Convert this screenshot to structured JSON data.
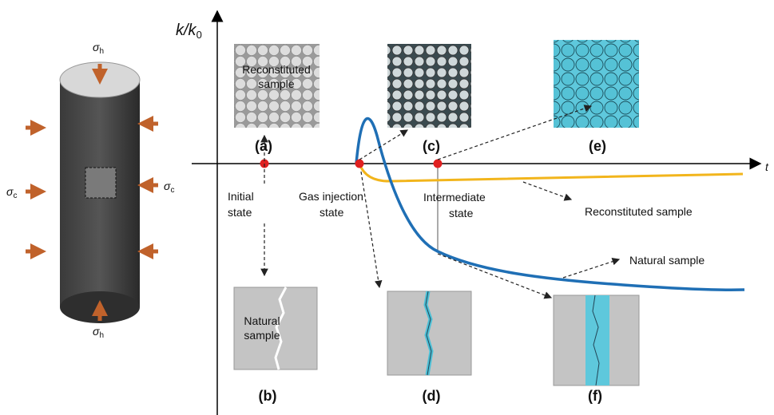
{
  "cylinder": {
    "top_stress": {
      "symbol": "σ",
      "subscript": "h"
    },
    "bottom_stress": {
      "symbol": "σ",
      "subscript": "h"
    },
    "left_stress": {
      "symbol": "σ",
      "subscript": "c"
    },
    "right_stress": {
      "symbol": "σ",
      "subscript": "c"
    }
  },
  "axes": {
    "y_label": {
      "text": "k/k",
      "subscript": "0"
    },
    "x_label": "t"
  },
  "panels": [
    {
      "label": "(a)",
      "caption_lines": [
        "Reconstituted",
        "sample"
      ]
    },
    {
      "label": "(b)",
      "caption_lines": [
        "Natural",
        "sample"
      ]
    },
    {
      "label": "(c)"
    },
    {
      "label": "(d)"
    },
    {
      "label": "(e)"
    },
    {
      "label": "(f)"
    }
  ],
  "states": [
    {
      "lines": [
        "Initial",
        "state"
      ]
    },
    {
      "lines": [
        "Gas injection",
        "state"
      ]
    },
    {
      "lines": [
        "Intermediate",
        "state"
      ]
    }
  ],
  "curves": [
    {
      "label": "Reconstituted sample"
    },
    {
      "label": "Natural sample"
    }
  ]
}
